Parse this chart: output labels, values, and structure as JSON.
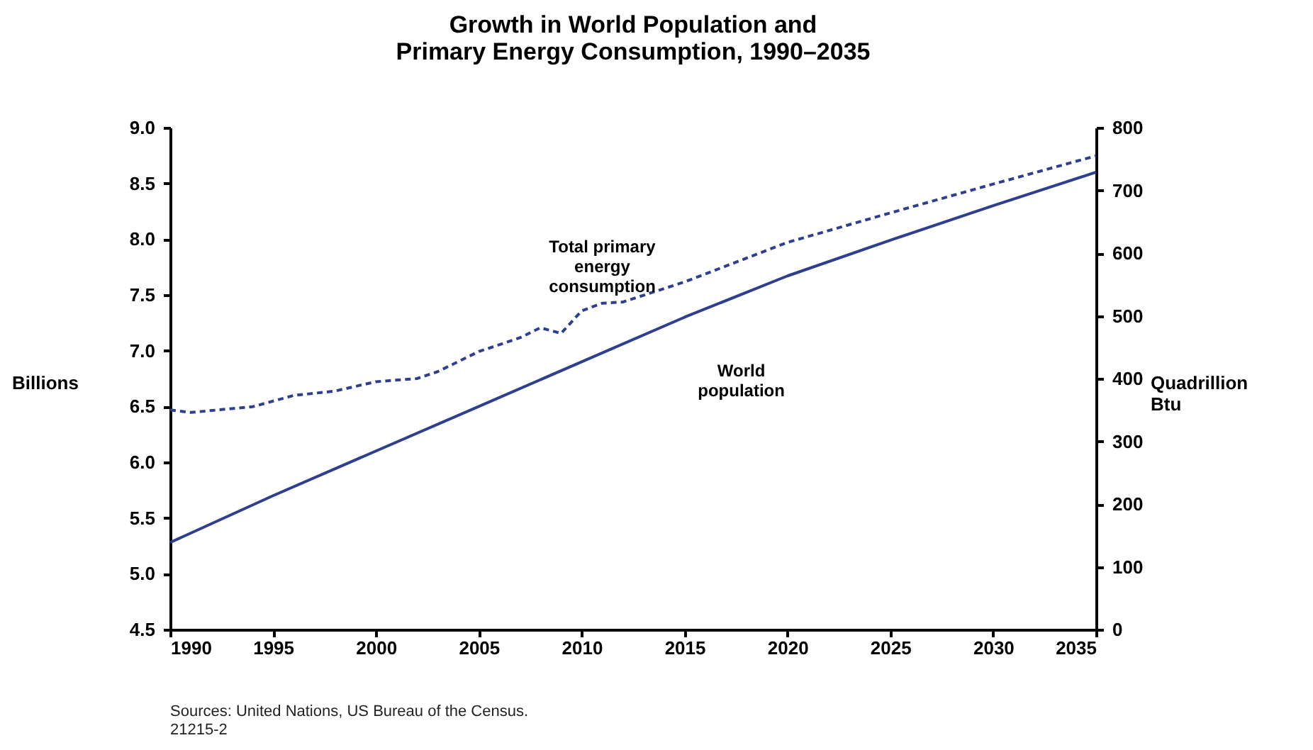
{
  "chart_data": {
    "type": "line",
    "title": "Growth in World Population and\nPrimary Energy Consumption, 1990–2035",
    "ylabel": "Billions",
    "y2label": "Quadrillion Btu",
    "x": [
      1990,
      1995,
      2000,
      2005,
      2010,
      2015,
      2020,
      2025,
      2030,
      2035
    ],
    "series": [
      {
        "name": "World population",
        "color": "#2f3f8f",
        "line_style": "solid",
        "values": [
          5.28,
          5.7,
          6.1,
          6.5,
          6.9,
          7.3,
          7.67,
          7.99,
          8.3,
          8.6
        ]
      },
      {
        "name": "Total primary energy consumption",
        "color": "#2f3f8f",
        "line_style": "dashed",
        "axis": "y2",
        "x": [
          1990,
          1991,
          1994,
          1996,
          1998,
          2000,
          2002,
          2003,
          2005,
          2007,
          2008,
          2009,
          2010,
          2011,
          2012,
          2015,
          2020,
          2025,
          2030,
          2035
        ],
        "values": [
          350,
          346,
          355,
          373,
          380,
          395,
          400,
          411,
          443,
          465,
          481,
          472,
          508,
          520,
          522,
          554,
          617,
          664,
          710,
          755
        ]
      }
    ],
    "xlim": [
      1990,
      2035
    ],
    "xticks": [
      1990,
      1995,
      2000,
      2005,
      2010,
      2015,
      2020,
      2025,
      2030,
      2035
    ],
    "ylim": [
      4.5,
      9.0
    ],
    "yticks": [
      4.5,
      {
        "value": 5,
        "label": "5.0"
      },
      5.5,
      {
        "value": 6,
        "label": "6.0"
      },
      6.5,
      {
        "value": 7,
        "label": "7.0"
      },
      7.5,
      {
        "value": 8,
        "label": "8.0"
      },
      8.5,
      {
        "value": 9,
        "label": "9.0"
      }
    ],
    "y2lim": [
      0,
      800
    ],
    "y2ticks": [
      0,
      100,
      200,
      300,
      400,
      500,
      600,
      700,
      800
    ],
    "grid": false,
    "legend": false,
    "marker": "none",
    "annotations": [
      "Sources: United Nations, US Bureau of the Census.",
      "21215-2"
    ]
  }
}
